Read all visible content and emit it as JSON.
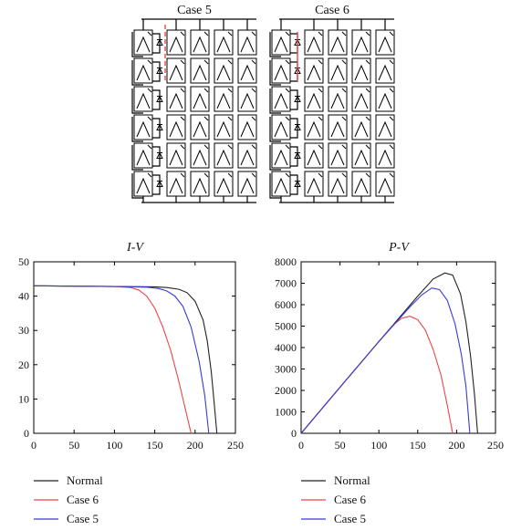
{
  "diagram": {
    "titles": [
      "Case 5",
      "Case 6"
    ],
    "rows": 6,
    "columns": 5,
    "bypass_highlight": {
      "Case 5": "red dashed bypass line across top two modules",
      "Case 6": "red bypass on top two diodes"
    }
  },
  "colors": {
    "Normal": "#222222",
    "Case 6": "#e8474b",
    "Case 5": "#3b3bd0"
  },
  "chart_data": [
    {
      "type": "line",
      "title": "I-V",
      "xlabel": "",
      "ylabel": "",
      "xlim": [
        0,
        250
      ],
      "ylim": [
        0,
        50
      ],
      "xticks": [
        0,
        50,
        100,
        150,
        200,
        250
      ],
      "yticks": [
        0,
        10,
        20,
        30,
        40,
        50
      ],
      "legend_position": "below",
      "grid": false,
      "series": [
        {
          "name": "Normal",
          "x": [
            0,
            50,
            100,
            150,
            165,
            180,
            190,
            200,
            210,
            215,
            220,
            224,
            227
          ],
          "y": [
            43,
            42.9,
            42.8,
            42.7,
            42.5,
            42.0,
            41.0,
            38.5,
            33.0,
            27.0,
            18.0,
            8.0,
            0
          ]
        },
        {
          "name": "Case 6",
          "x": [
            0,
            50,
            100,
            120,
            130,
            140,
            150,
            160,
            170,
            180,
            188,
            195
          ],
          "y": [
            43,
            42.9,
            42.8,
            42.5,
            41.8,
            40.0,
            36.5,
            31.0,
            24.0,
            15.0,
            7.0,
            0
          ]
        },
        {
          "name": "Case 5",
          "x": [
            0,
            50,
            100,
            140,
            155,
            165,
            175,
            185,
            195,
            205,
            212,
            217
          ],
          "y": [
            43,
            42.9,
            42.8,
            42.6,
            42.2,
            41.5,
            40.0,
            37.0,
            31.0,
            21.0,
            11.0,
            0
          ]
        }
      ]
    },
    {
      "type": "line",
      "title": "P-V",
      "xlabel": "",
      "ylabel": "",
      "xlim": [
        0,
        250
      ],
      "ylim": [
        0,
        8000
      ],
      "xticks": [
        0,
        50,
        100,
        150,
        200,
        250
      ],
      "yticks": [
        0,
        1000,
        2000,
        3000,
        4000,
        5000,
        6000,
        7000,
        8000
      ],
      "legend_position": "below",
      "grid": false,
      "series": [
        {
          "name": "Normal",
          "x": [
            0,
            50,
            100,
            150,
            170,
            185,
            195,
            205,
            212,
            218,
            223,
            227
          ],
          "y": [
            0,
            2150,
            4280,
            6400,
            7200,
            7480,
            7380,
            6500,
            5200,
            3600,
            1800,
            0
          ]
        },
        {
          "name": "Case 6",
          "x": [
            0,
            50,
            100,
            120,
            130,
            140,
            150,
            160,
            170,
            180,
            188,
            195
          ],
          "y": [
            0,
            2150,
            4280,
            5100,
            5380,
            5460,
            5300,
            4800,
            3900,
            2700,
            1300,
            0
          ]
        },
        {
          "name": "Case 5",
          "x": [
            0,
            50,
            100,
            140,
            155,
            168,
            178,
            188,
            198,
            206,
            212,
            217
          ],
          "y": [
            0,
            2150,
            4280,
            5900,
            6450,
            6780,
            6700,
            6200,
            5100,
            3700,
            2200,
            0
          ]
        }
      ]
    }
  ]
}
